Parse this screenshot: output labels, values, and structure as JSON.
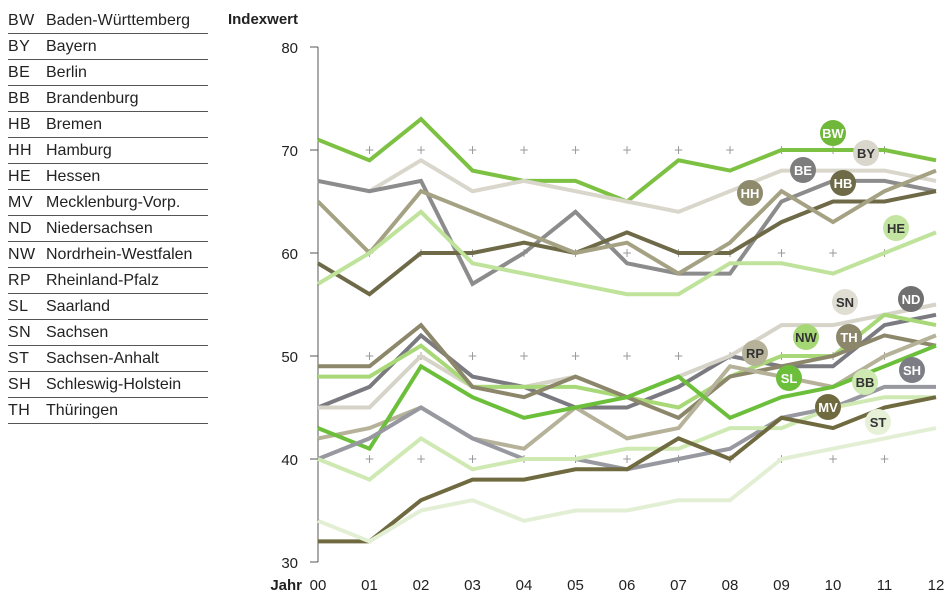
{
  "legend": {
    "items": [
      {
        "code": "BW",
        "name": "Baden-Württemberg"
      },
      {
        "code": "BY",
        "name": "Bayern"
      },
      {
        "code": "BE",
        "name": "Berlin"
      },
      {
        "code": "BB",
        "name": "Brandenburg"
      },
      {
        "code": "HB",
        "name": "Bremen"
      },
      {
        "code": "HH",
        "name": "Hamburg"
      },
      {
        "code": "HE",
        "name": "Hessen"
      },
      {
        "code": "MV",
        "name": "Mecklenburg-Vorp."
      },
      {
        "code": "ND",
        "name": "Niedersachsen"
      },
      {
        "code": "NW",
        "name": "Nordrhein-Westfalen"
      },
      {
        "code": "RP",
        "name": "Rheinland-Pfalz"
      },
      {
        "code": "SL",
        "name": "Saarland"
      },
      {
        "code": "SN",
        "name": "Sachsen"
      },
      {
        "code": "ST",
        "name": "Sachsen-Anhalt"
      },
      {
        "code": "SH",
        "name": "Schleswig-Holstein"
      },
      {
        "code": "TH",
        "name": "Thüringen"
      }
    ]
  },
  "chart_data": {
    "type": "line",
    "title": "",
    "ylabel": "Indexwert",
    "xlabel": "Jahr",
    "categories": [
      "00",
      "01",
      "02",
      "03",
      "04",
      "05",
      "06",
      "07",
      "08",
      "09",
      "10",
      "11",
      "12"
    ],
    "y_ticks": [
      30,
      40,
      50,
      60,
      70,
      80
    ],
    "ylim": [
      30,
      80
    ],
    "grid": "plus-markers",
    "series": [
      {
        "name": "BW",
        "color": "#7dc142",
        "label_color": "#6fb83a",
        "values": [
          71,
          69,
          73,
          68,
          67,
          67,
          65,
          69,
          68,
          70,
          70,
          70,
          69
        ]
      },
      {
        "name": "BY",
        "color": "#d9d6cc",
        "label_color": "#d9d6cc",
        "values": [
          67,
          66,
          69,
          66,
          67,
          66,
          65,
          64,
          66,
          68,
          68,
          68,
          67
        ]
      },
      {
        "name": "BE",
        "color": "#8c8c8c",
        "label_color": "#7d7d7d",
        "values": [
          67,
          66,
          67,
          57,
          60,
          64,
          59,
          58,
          58,
          65,
          67,
          67,
          66
        ]
      },
      {
        "name": "HB",
        "color": "#6e6a48",
        "label_color": "#6e6a48",
        "values": [
          59,
          56,
          60,
          60,
          61,
          60,
          62,
          60,
          60,
          63,
          65,
          65,
          66
        ]
      },
      {
        "name": "HH",
        "color": "#a5a284",
        "label_color": "#8e8b6c",
        "values": [
          65,
          60,
          66,
          64,
          62,
          60,
          61,
          58,
          61,
          66,
          63,
          66,
          68
        ]
      },
      {
        "name": "HE",
        "color": "#bfe39a",
        "label_color": "#c3e5a1",
        "values": [
          57,
          60,
          64,
          59,
          58,
          57,
          56,
          56,
          59,
          59,
          58,
          60,
          62
        ]
      },
      {
        "name": "ND",
        "color": "#7a7a80",
        "label_color": "#707070",
        "values": [
          45,
          47,
          52,
          48,
          47,
          45,
          45,
          47,
          50,
          49,
          49,
          53,
          54
        ]
      },
      {
        "name": "SN",
        "color": "#d6d3c8",
        "label_color": "#e0ddd3",
        "values": [
          45,
          45,
          50,
          47,
          47,
          48,
          46,
          48,
          50,
          53,
          53,
          54,
          55
        ]
      },
      {
        "name": "NW",
        "color": "#a8d877",
        "label_color": "#a5d875",
        "values": [
          48,
          48,
          51,
          47,
          47,
          47,
          46,
          45,
          48,
          50,
          50,
          54,
          53
        ]
      },
      {
        "name": "TH",
        "color": "#8c876a",
        "label_color": "#8c876a",
        "values": [
          49,
          49,
          53,
          47,
          46,
          48,
          46,
          44,
          48,
          49,
          50,
          52,
          51
        ]
      },
      {
        "name": "RP",
        "color": "#b6b29a",
        "label_color": "#b6b29a",
        "values": [
          42,
          43,
          45,
          42,
          41,
          45,
          42,
          43,
          49,
          48,
          47,
          50,
          52
        ]
      },
      {
        "name": "SL",
        "color": "#6cbf3b",
        "label_color": "#6cbf3b",
        "values": [
          43,
          41,
          49,
          46,
          44,
          45,
          46,
          48,
          44,
          46,
          47,
          49,
          51
        ]
      },
      {
        "name": "SH",
        "color": "#9898a0",
        "label_color": "#7d7d85",
        "values": [
          40,
          42,
          45,
          42,
          40,
          40,
          39,
          40,
          41,
          44,
          45,
          47,
          47
        ]
      },
      {
        "name": "BB",
        "color": "#cfe9b3",
        "label_color": "#cfe9b3",
        "values": [
          40,
          38,
          42,
          39,
          40,
          40,
          41,
          41,
          43,
          43,
          45,
          46,
          46
        ]
      },
      {
        "name": "MV",
        "color": "#6f6a3f",
        "label_color": "#6f6a3f",
        "values": [
          32,
          32,
          36,
          38,
          38,
          39,
          39,
          42,
          40,
          44,
          43,
          45,
          46
        ]
      },
      {
        "name": "ST",
        "color": "#e3efd4",
        "label_color": "#e6f1d8",
        "values": [
          34,
          32,
          35,
          36,
          34,
          35,
          35,
          36,
          36,
          40,
          41,
          42,
          43
        ]
      }
    ]
  }
}
